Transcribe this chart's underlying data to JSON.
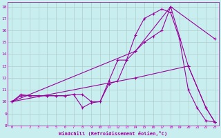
{
  "xlabel": "Windchill (Refroidissement éolien,°C)",
  "background_color": "#c8eef0",
  "line_color": "#990099",
  "xlim": [
    -0.5,
    23.5
  ],
  "ylim": [
    8,
    18.4
  ],
  "xticks": [
    0,
    1,
    2,
    3,
    4,
    5,
    6,
    7,
    8,
    9,
    10,
    11,
    12,
    13,
    14,
    15,
    16,
    17,
    18,
    19,
    20,
    21,
    22,
    23
  ],
  "yticks": [
    8,
    9,
    10,
    11,
    12,
    13,
    14,
    15,
    16,
    17,
    18
  ],
  "grid_color": "#b0cccc",
  "line1_x": [
    0,
    1,
    2,
    3,
    4,
    5,
    6,
    7,
    8,
    9,
    10,
    11,
    12,
    13,
    14,
    15,
    16,
    17,
    18,
    19,
    20,
    21,
    22,
    23
  ],
  "line1_y": [
    10.0,
    10.6,
    10.5,
    10.5,
    10.5,
    10.5,
    10.5,
    10.6,
    10.6,
    10.0,
    10.0,
    11.75,
    13.5,
    13.5,
    15.6,
    17.0,
    17.4,
    17.8,
    17.5,
    15.3,
    11.0,
    9.5,
    8.4,
    8.3
  ],
  "line2_x": [
    0,
    1,
    2,
    3,
    4,
    5,
    6,
    7,
    8,
    9,
    10,
    11,
    12,
    13,
    14,
    15,
    16,
    17,
    18,
    20,
    22,
    23
  ],
  "line2_y": [
    10.0,
    10.5,
    10.5,
    10.5,
    10.5,
    10.5,
    10.5,
    10.6,
    9.5,
    9.9,
    10.0,
    11.5,
    11.75,
    13.5,
    14.25,
    15.0,
    15.5,
    16.0,
    18.0,
    13.0,
    9.5,
    8.3
  ],
  "line3_x": [
    0,
    14,
    18,
    23
  ],
  "line3_y": [
    10.0,
    14.25,
    18.0,
    15.3
  ],
  "line4_x": [
    0,
    14,
    20,
    22,
    23
  ],
  "line4_y": [
    10.0,
    12.0,
    13.0,
    9.5,
    8.3
  ]
}
